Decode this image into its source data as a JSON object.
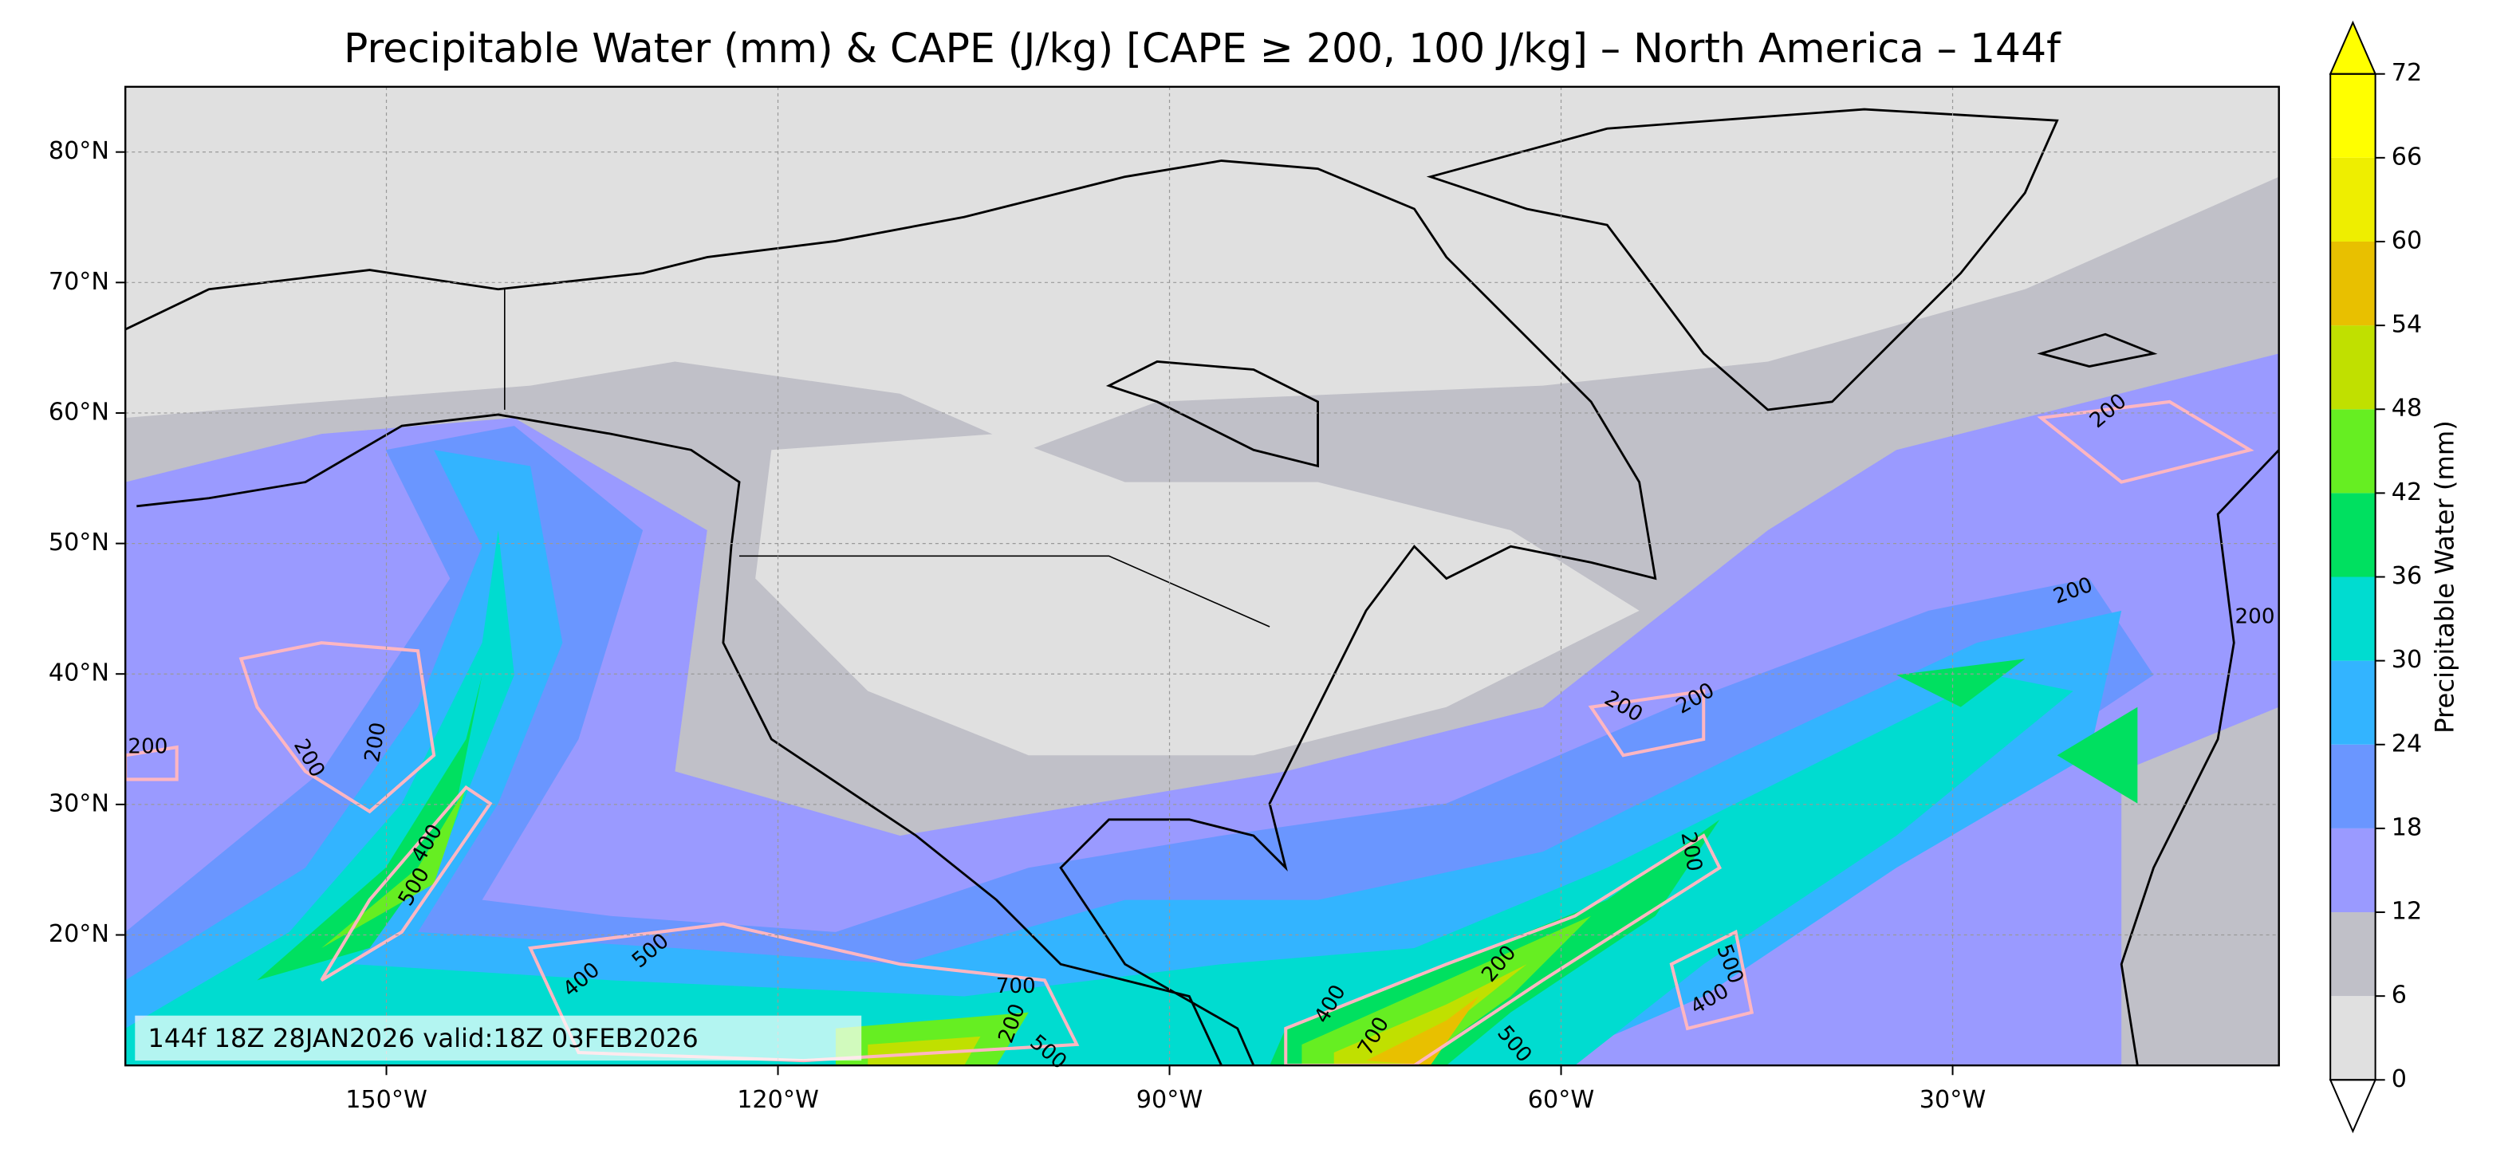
{
  "chart_data": {
    "type": "map",
    "title": "Precipitable Water (mm) & CAPE (J/kg) [CAPE ≥ 200, 100 J/kg] – North America – 144f",
    "xlim": [
      -170,
      -5
    ],
    "ylim": [
      10,
      85
    ],
    "xticks": [
      {
        "value": -150,
        "label": "150°W"
      },
      {
        "value": -120,
        "label": "120°W"
      },
      {
        "value": -90,
        "label": "90°W"
      },
      {
        "value": -60,
        "label": "60°W"
      },
      {
        "value": -30,
        "label": "30°W"
      }
    ],
    "yticks": [
      {
        "value": 20,
        "label": "20°N"
      },
      {
        "value": 30,
        "label": "30°N"
      },
      {
        "value": 40,
        "label": "40°N"
      },
      {
        "value": 50,
        "label": "50°N"
      },
      {
        "value": 60,
        "label": "60°N"
      },
      {
        "value": 70,
        "label": "70°N"
      },
      {
        "value": 80,
        "label": "80°N"
      }
    ],
    "grid": true,
    "annotation": "144f 18Z 28JAN2026 valid:18Z 03FEB2026",
    "colorbar": {
      "label": "Precipitable Water (mm)",
      "levels": [
        0,
        6,
        12,
        18,
        24,
        30,
        36,
        42,
        48,
        54,
        60,
        66,
        72
      ],
      "ticks": [
        0,
        6,
        12,
        18,
        24,
        30,
        36,
        42,
        48,
        54,
        60,
        66,
        72
      ],
      "colors": [
        "#e0e0e0",
        "#c0c0c8",
        "#9a9aff",
        "#6a96ff",
        "#33b4ff",
        "#00dcd0",
        "#00e060",
        "#66ee22",
        "#c0e000",
        "#e8c000",
        "#eeee00",
        "#ffff00"
      ]
    },
    "contour_labels": [
      "200",
      "200",
      "200",
      "200",
      "200",
      "200",
      "200",
      "200",
      "200",
      "400",
      "500",
      "400",
      "500",
      "700",
      "200",
      "500",
      "700",
      "400",
      "500",
      "200",
      "500",
      "400"
    ]
  }
}
